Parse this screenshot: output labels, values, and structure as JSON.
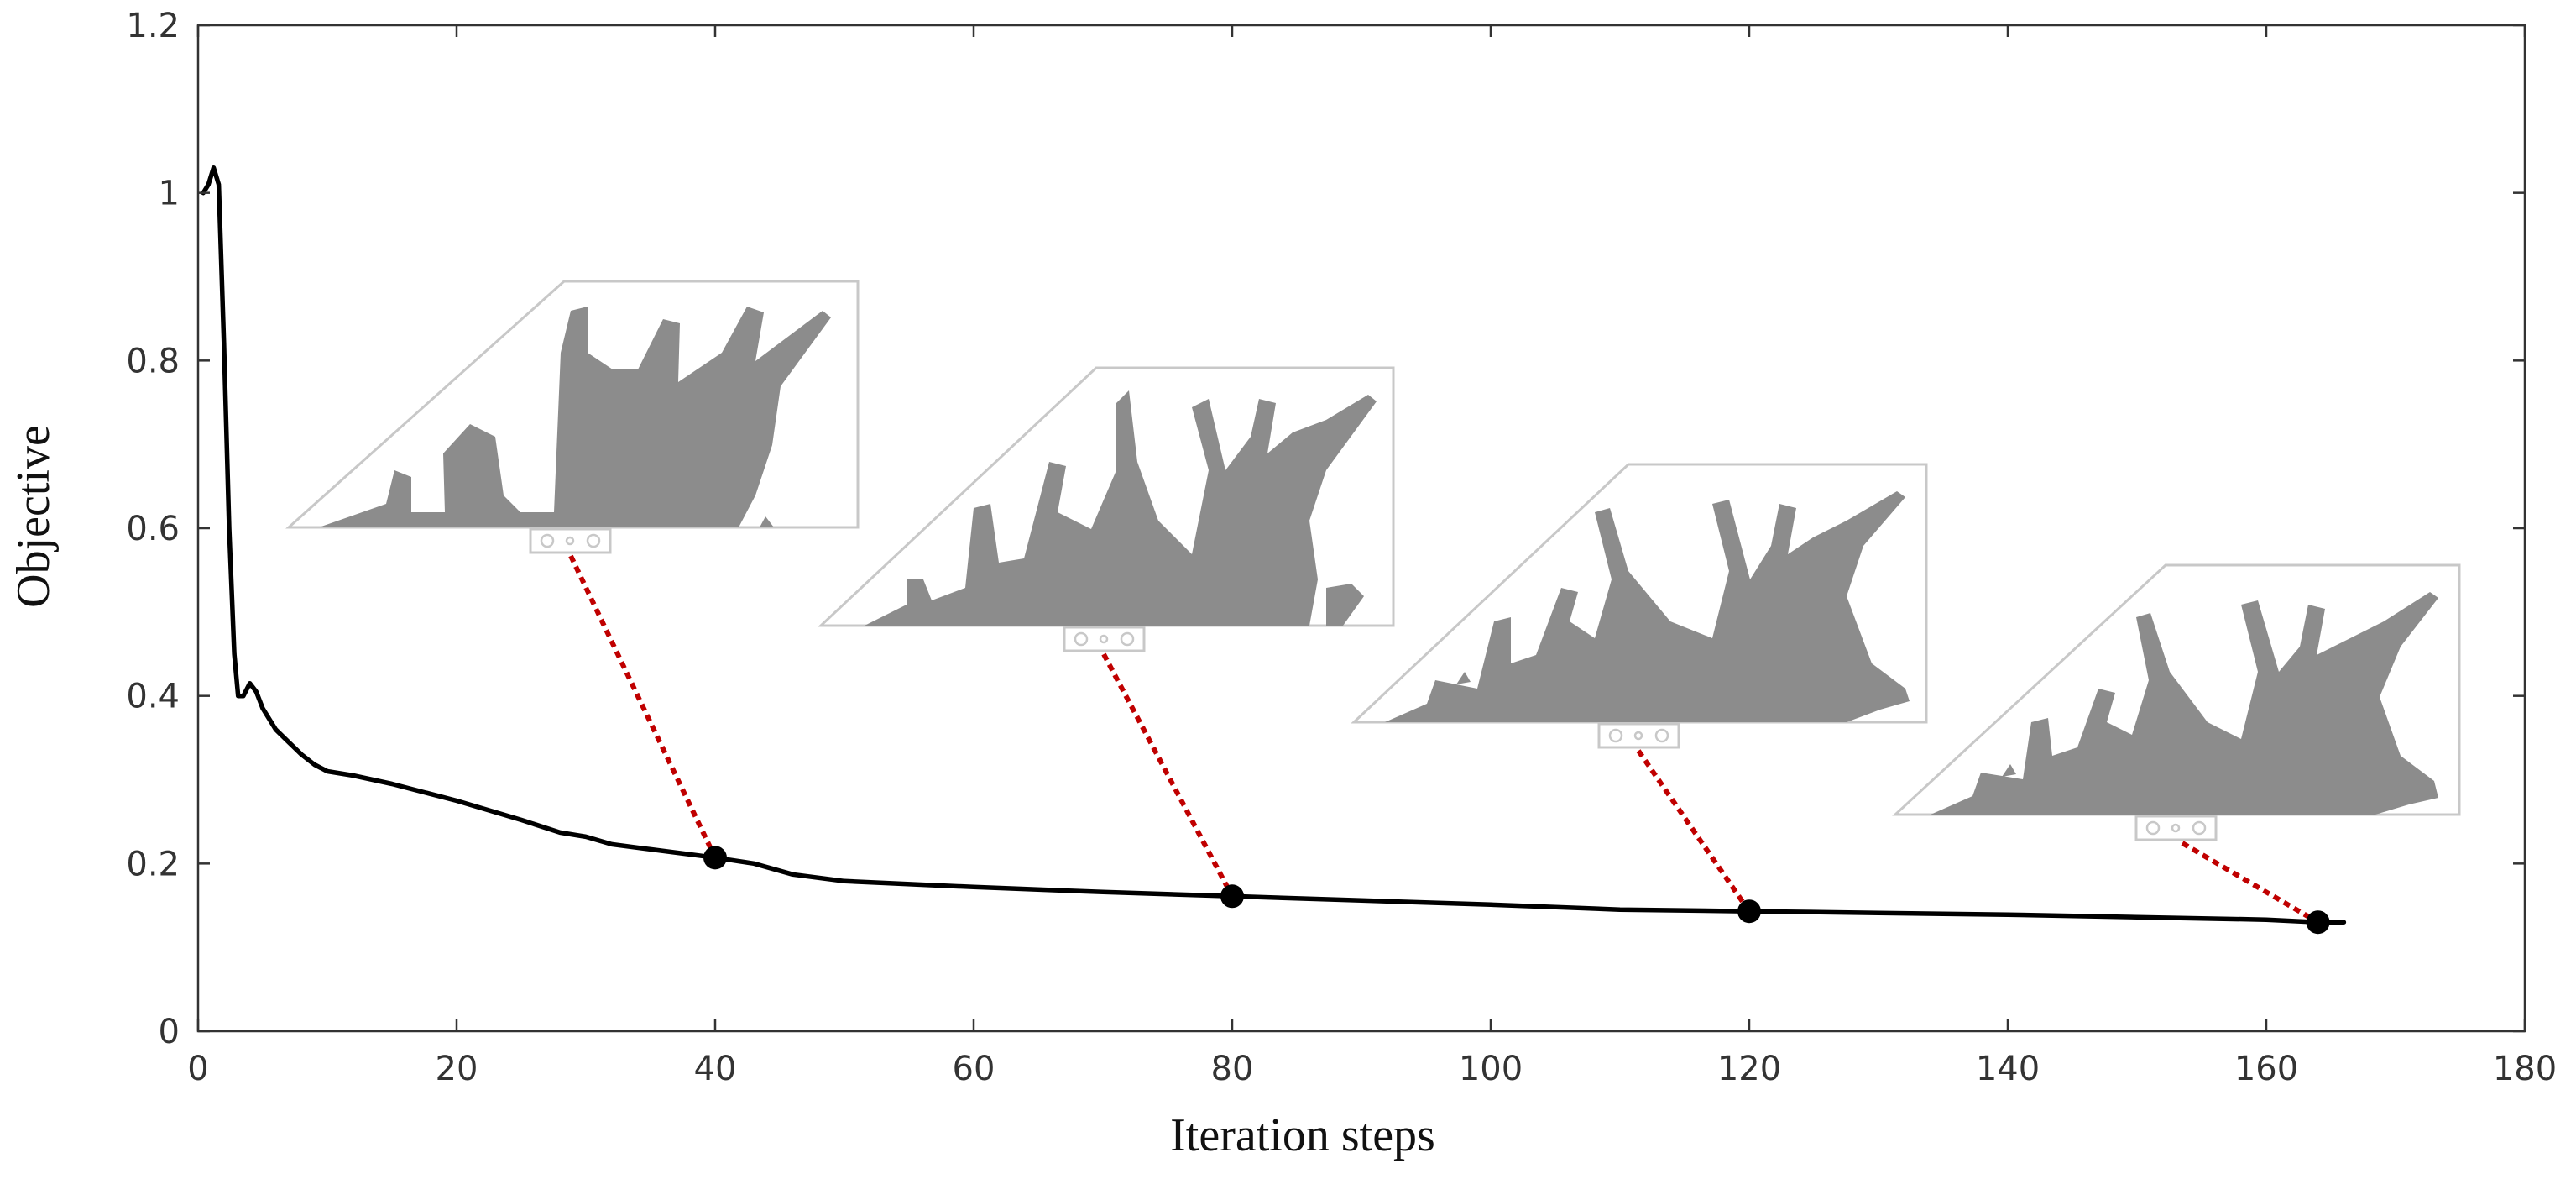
{
  "chart_data": {
    "type": "line",
    "title": "",
    "xlabel": "Iteration steps",
    "ylabel": "Objective",
    "xlim": [
      0,
      180
    ],
    "ylim": [
      0,
      1.2
    ],
    "x_ticks": [
      0,
      20,
      40,
      60,
      80,
      100,
      120,
      140,
      160,
      180
    ],
    "x_tick_labels": [
      "0",
      "20",
      "40",
      "60",
      "80",
      "100",
      "120",
      "140",
      "160",
      "180"
    ],
    "y_ticks": [
      0,
      0.2,
      0.4,
      0.6,
      0.8,
      1.0,
      1.2
    ],
    "y_tick_labels": [
      "0",
      "0.2",
      "0.4",
      "0.6",
      "0.8",
      "1",
      "1.2"
    ],
    "grid": false,
    "series": [
      {
        "color": "#000000",
        "x": [
          0.4,
          0.8,
          1.2,
          1.6,
          2.0,
          2.4,
          2.8,
          3.1,
          3.5,
          4.0,
          4.5,
          5.0,
          6,
          7,
          8,
          9,
          10,
          12,
          15,
          20,
          25,
          28,
          30,
          32,
          35,
          40,
          43,
          46,
          50,
          60,
          70,
          80,
          90,
          100,
          110,
          120,
          130,
          140,
          150,
          160,
          164,
          166
        ],
        "y": [
          1.0,
          1.01,
          1.03,
          1.01,
          0.82,
          0.6,
          0.45,
          0.4,
          0.4,
          0.415,
          0.405,
          0.385,
          0.36,
          0.345,
          0.33,
          0.318,
          0.31,
          0.305,
          0.295,
          0.275,
          0.252,
          0.237,
          0.232,
          0.223,
          0.217,
          0.207,
          0.2,
          0.187,
          0.179,
          0.172,
          0.166,
          0.161,
          0.156,
          0.151,
          0.145,
          0.143,
          0.141,
          0.139,
          0.136,
          0.133,
          0.13,
          0.13
        ]
      }
    ],
    "highlighted_points": [
      {
        "x": 40,
        "y": 0.207
      },
      {
        "x": 80,
        "y": 0.161
      },
      {
        "x": 120,
        "y": 0.143
      },
      {
        "x": 164,
        "y": 0.13
      }
    ],
    "marker_color": "#000000",
    "connector_color": "#c00000",
    "inset_fill_color": "#8c8c8c",
    "inset_border_color": "#c0c0c0"
  }
}
